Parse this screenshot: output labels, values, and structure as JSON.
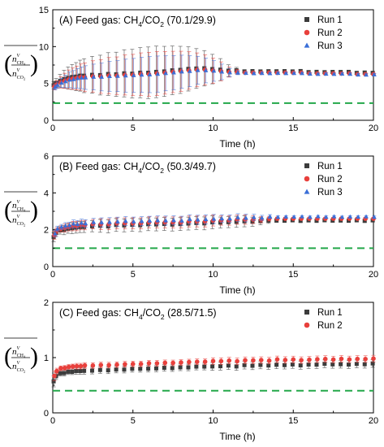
{
  "panels_ui": {
    "x_label": "Time (h)"
  },
  "chart_data": [
    {
      "type": "scatter",
      "panel": "(A)",
      "title_prefix": "(A)  Feed gas: CH",
      "title_sub1": "4",
      "title_mid": "/CO",
      "title_sub2": "2",
      "title_suffix": " (70.1/29.9)",
      "xlabel": "Time (h)",
      "ylabel": "n^V_CH4 / n^V_CO2",
      "xlim": [
        0,
        20
      ],
      "ylim": [
        0,
        15
      ],
      "xticks": [
        "0",
        "5",
        "10",
        "15",
        "20"
      ],
      "yticks": [
        "0",
        "5",
        "10",
        "15"
      ],
      "reference_line": 2.33,
      "legend_position": "top-right",
      "series": [
        {
          "name": "Run 1",
          "marker": "square",
          "color": "#3c3c3c"
        },
        {
          "name": "Run 2",
          "marker": "circle",
          "color": "#e8403c"
        },
        {
          "name": "Run 3",
          "marker": "triangle",
          "color": "#3a6fd8"
        }
      ],
      "x": [
        0.1,
        0.25,
        0.5,
        0.75,
        1.0,
        1.25,
        1.5,
        1.75,
        2.0,
        2.5,
        3.0,
        3.5,
        4.0,
        4.5,
        5.0,
        5.5,
        6.0,
        6.5,
        7.0,
        7.5,
        8.0,
        8.5,
        9.0,
        9.5,
        10.0,
        10.5,
        11.0,
        11.5,
        12.0,
        12.5,
        13.0,
        13.5,
        14.0,
        14.5,
        15.0,
        15.5,
        16.0,
        16.5,
        17.0,
        17.5,
        18.0,
        18.5,
        19.0,
        19.5,
        20.0
      ],
      "y": [
        4.6,
        4.9,
        5.2,
        5.4,
        5.6,
        5.7,
        5.8,
        5.9,
        5.9,
        6.0,
        6.0,
        6.1,
        6.1,
        6.2,
        6.2,
        6.3,
        6.3,
        6.4,
        6.5,
        6.6,
        6.7,
        6.8,
        6.9,
        6.9,
        6.8,
        6.7,
        6.6,
        6.6,
        6.5,
        6.5,
        6.5,
        6.5,
        6.5,
        6.5,
        6.5,
        6.5,
        6.4,
        6.4,
        6.4,
        6.4,
        6.4,
        6.4,
        6.3,
        6.3,
        6.3
      ],
      "err": [
        0.5,
        0.6,
        0.9,
        1.2,
        1.5,
        1.7,
        1.9,
        2.1,
        2.3,
        2.5,
        2.7,
        2.9,
        3.0,
        3.2,
        3.3,
        3.4,
        3.5,
        3.5,
        3.4,
        3.3,
        3.2,
        3.0,
        2.7,
        2.4,
        2.0,
        1.5,
        0.8,
        0.4,
        0.2,
        0.2,
        0.2,
        0.2,
        0.2,
        0.2,
        0.2,
        0.2,
        0.2,
        0.2,
        0.2,
        0.2,
        0.2,
        0.2,
        0.2,
        0.2,
        0.2
      ],
      "offsets": [
        0.15,
        -0.05,
        -0.12
      ]
    },
    {
      "type": "scatter",
      "panel": "(B)",
      "title_prefix": "(B)  Feed gas: CH",
      "title_sub1": "4",
      "title_mid": "/CO",
      "title_sub2": "2",
      "title_suffix": " (50.3/49.7)",
      "xlabel": "Time (h)",
      "ylabel": "n^V_CH4 / n^V_CO2",
      "xlim": [
        0,
        20
      ],
      "ylim": [
        0,
        6
      ],
      "xticks": [
        "0",
        "5",
        "10",
        "15",
        "20"
      ],
      "yticks": [
        "0",
        "2",
        "4",
        "6"
      ],
      "reference_line": 1.0,
      "legend_position": "top-right",
      "series": [
        {
          "name": "Run 1",
          "marker": "square",
          "color": "#3c3c3c"
        },
        {
          "name": "Run 2",
          "marker": "circle",
          "color": "#e8403c"
        },
        {
          "name": "Run 3",
          "marker": "triangle",
          "color": "#3a6fd8"
        }
      ],
      "x": [
        0.1,
        0.25,
        0.5,
        0.75,
        1.0,
        1.25,
        1.5,
        1.75,
        2.0,
        2.5,
        3.0,
        3.5,
        4.0,
        4.5,
        5.0,
        5.5,
        6.0,
        6.5,
        7.0,
        7.5,
        8.0,
        8.5,
        9.0,
        9.5,
        10.0,
        10.5,
        11.0,
        11.5,
        12.0,
        12.5,
        13.0,
        13.5,
        14.0,
        14.5,
        15.0,
        15.5,
        16.0,
        16.5,
        17.0,
        17.5,
        18.0,
        18.5,
        19.0,
        19.5,
        20.0
      ],
      "y": [
        1.7,
        1.95,
        2.05,
        2.1,
        2.15,
        2.2,
        2.2,
        2.25,
        2.25,
        2.3,
        2.3,
        2.3,
        2.35,
        2.35,
        2.35,
        2.35,
        2.4,
        2.4,
        2.4,
        2.4,
        2.4,
        2.45,
        2.45,
        2.45,
        2.5,
        2.5,
        2.5,
        2.55,
        2.55,
        2.55,
        2.55,
        2.6,
        2.6,
        2.6,
        2.6,
        2.6,
        2.6,
        2.6,
        2.6,
        2.6,
        2.6,
        2.6,
        2.6,
        2.6,
        2.6
      ],
      "err": [
        0.25,
        0.2,
        0.2,
        0.25,
        0.25,
        0.3,
        0.3,
        0.3,
        0.3,
        0.3,
        0.35,
        0.35,
        0.35,
        0.35,
        0.35,
        0.35,
        0.35,
        0.35,
        0.35,
        0.35,
        0.35,
        0.35,
        0.35,
        0.35,
        0.35,
        0.3,
        0.3,
        0.3,
        0.3,
        0.25,
        0.2,
        0.15,
        0.1,
        0.08,
        0.08,
        0.08,
        0.08,
        0.08,
        0.08,
        0.08,
        0.08,
        0.08,
        0.08,
        0.08,
        0.08
      ],
      "offsets": [
        -0.1,
        0.0,
        0.1
      ]
    },
    {
      "type": "scatter",
      "panel": "(C)",
      "title_prefix": "(C)  Feed gas: CH",
      "title_sub1": "4",
      "title_mid": "/CO",
      "title_sub2": "2",
      "title_suffix": " (28.5/71.5)",
      "xlabel": "Time (h)",
      "ylabel": "n^V_CH4 / n^V_CO2",
      "xlim": [
        0,
        20
      ],
      "ylim": [
        0,
        2
      ],
      "xticks": [
        "0",
        "5",
        "10",
        "15",
        "20"
      ],
      "yticks": [
        "0",
        "1",
        "2"
      ],
      "reference_line": 0.4,
      "legend_position": "top-right",
      "series": [
        {
          "name": "Run 1",
          "marker": "square",
          "color": "#3c3c3c"
        },
        {
          "name": "Run 2",
          "marker": "circle",
          "color": "#e8403c"
        }
      ],
      "x": [
        0.1,
        0.25,
        0.5,
        0.75,
        1.0,
        1.25,
        1.5,
        1.75,
        2.0,
        2.5,
        3.0,
        3.5,
        4.0,
        4.5,
        5.0,
        5.5,
        6.0,
        6.5,
        7.0,
        7.5,
        8.0,
        8.5,
        9.0,
        9.5,
        10.0,
        10.5,
        11.0,
        11.5,
        12.0,
        12.5,
        13.0,
        13.5,
        14.0,
        14.5,
        15.0,
        15.5,
        16.0,
        16.5,
        17.0,
        17.5,
        18.0,
        18.5,
        19.0,
        19.5,
        20.0
      ],
      "y": [
        0.62,
        0.72,
        0.76,
        0.78,
        0.79,
        0.8,
        0.8,
        0.81,
        0.81,
        0.82,
        0.82,
        0.83,
        0.83,
        0.84,
        0.84,
        0.85,
        0.85,
        0.86,
        0.86,
        0.87,
        0.87,
        0.88,
        0.88,
        0.89,
        0.89,
        0.9,
        0.9,
        0.9,
        0.91,
        0.91,
        0.91,
        0.91,
        0.92,
        0.92,
        0.92,
        0.92,
        0.92,
        0.93,
        0.93,
        0.93,
        0.93,
        0.93,
        0.93,
        0.94,
        0.94
      ],
      "err": [
        0.1,
        0.06,
        0.05,
        0.05,
        0.05,
        0.05,
        0.06,
        0.06,
        0.06,
        0.06,
        0.06,
        0.06,
        0.06,
        0.06,
        0.06,
        0.06,
        0.06,
        0.06,
        0.06,
        0.06,
        0.06,
        0.06,
        0.06,
        0.06,
        0.07,
        0.07,
        0.07,
        0.07,
        0.07,
        0.07,
        0.07,
        0.07,
        0.07,
        0.07,
        0.07,
        0.07,
        0.07,
        0.07,
        0.07,
        0.07,
        0.07,
        0.07,
        0.07,
        0.07,
        0.07
      ],
      "offsets": [
        -0.05,
        0.04
      ]
    }
  ]
}
